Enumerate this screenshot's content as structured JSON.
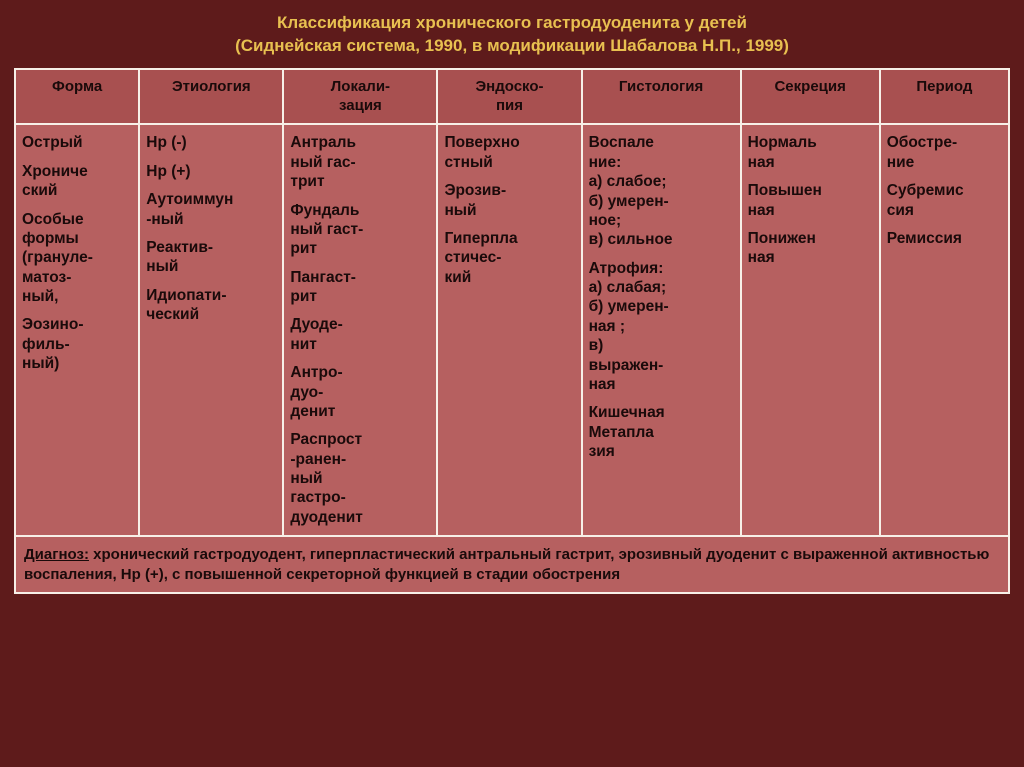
{
  "title": {
    "line1": "Классификация хронического гастродуоденита у детей",
    "line2": "(Сиднейская система, 1990, в модификации Шабалова Н.П., 1999)"
  },
  "headers": [
    "Форма",
    "Этиология",
    "Локали-\nзация",
    "Эндоско-\nпия",
    "Гистология",
    "Секреция",
    "Период"
  ],
  "cols": {
    "forma": [
      "Острый",
      "Хрониче\nский",
      "Особые формы (грануле-\nматоз-\nный,",
      "Эозино-\nфиль-\nный)"
    ],
    "etiology": [
      "Нр (-)",
      "Нр (+)",
      "Аутоиммун\n-ный",
      "Реактив-\nный",
      "Идиопати-\nческий"
    ],
    "local": [
      "Антраль\nный  гас-\nтрит",
      "Фундаль\nный гаст-\nрит",
      "Пангаст-\nрит",
      "Дуоде-\nнит",
      "Антро-\nдуо-\nденит",
      "Распрост\n-ранен-\nный\nгастро-\nдуоденит"
    ],
    "endo": [
      "Поверхно\nстный",
      "Эрозив-\nный",
      "Гиперпла\nстичес-\nкий"
    ],
    "histo": [
      "Воспале\nние:\nа) слабое;\nб) умерен-\nное;\nв) сильное",
      "Атрофия:\nа) слабая;\nб) умерен-\nная ;\nв)\nвыражен-\nная",
      "Кишечная\nМетапла\nзия"
    ],
    "secr": [
      "Нормаль\nная",
      "Повышен\nная",
      "Понижен\nная"
    ],
    "period": [
      "Обостре-\nние",
      "Субремис\nсия",
      "Ремиссия"
    ]
  },
  "diagnosis": {
    "label": "Диагноз:",
    "text": " хронический гастродуодент, гиперпластический антральный гастрит, эрозивный дуоденит с выраженной активностью воспаления, Нр (+), с повышенной секреторной функцией в стадии обострения"
  },
  "style": {
    "background": "#5e1b1b",
    "header_bg": "#a85050",
    "cell_bg": "#b66060",
    "border": "#f7f0e8",
    "title_color": "#e8c050",
    "cell_text": "#1a0a0a",
    "title_fontsize": 17,
    "header_fontsize": 15,
    "cell_fontsize": 15.5
  }
}
